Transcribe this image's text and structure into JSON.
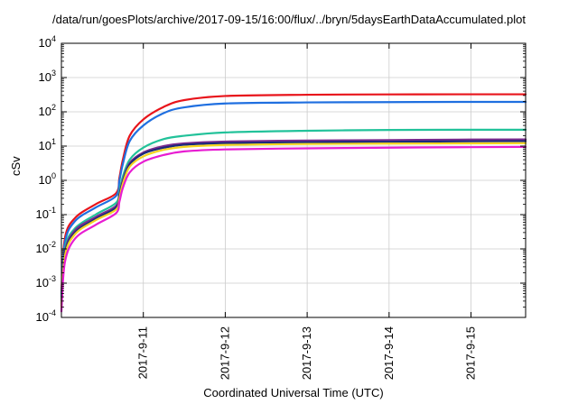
{
  "chart_data": {
    "type": "line",
    "title": "/data/run/goesPlots/archive/2017-09-15/16:00/flux/../bryn/5daysEarthDataAccumulated.plot",
    "xlabel": "Coordinated Universal Time (UTC)",
    "ylabel": "cSv",
    "yscale": "log",
    "ylim": [
      0.0001,
      10000
    ],
    "y_ticks": [
      {
        "base": "10",
        "exp": "-4",
        "value": 0.0001
      },
      {
        "base": "10",
        "exp": "-3",
        "value": 0.001
      },
      {
        "base": "10",
        "exp": "-2",
        "value": 0.01
      },
      {
        "base": "10",
        "exp": "-1",
        "value": 0.1
      },
      {
        "base": "10",
        "exp": "0",
        "value": 1
      },
      {
        "base": "10",
        "exp": "1",
        "value": 10
      },
      {
        "base": "10",
        "exp": "2",
        "value": 100
      },
      {
        "base": "10",
        "exp": "3",
        "value": 1000
      },
      {
        "base": "10",
        "exp": "4",
        "value": 10000
      }
    ],
    "xlim": [
      "2017-09-10 00:00",
      "2017-09-15 16:00"
    ],
    "x_ticks": [
      {
        "label": "2017-9-11",
        "value": "2017-09-11 00:00"
      },
      {
        "label": "2017-9-12",
        "value": "2017-09-12 00:00"
      },
      {
        "label": "2017-9-13",
        "value": "2017-09-13 00:00"
      },
      {
        "label": "2017-9-14",
        "value": "2017-09-14 00:00"
      },
      {
        "label": "2017-9-15",
        "value": "2017-09-15 00:00"
      }
    ],
    "grid": true,
    "legend": "none",
    "x": [
      "2017-09-10 00:00",
      "2017-09-10 01:00",
      "2017-09-10 04:00",
      "2017-09-10 10:00",
      "2017-09-10 16:00",
      "2017-09-10 17:00",
      "2017-09-10 18:00",
      "2017-09-10 20:00",
      "2017-09-11 00:00",
      "2017-09-11 06:00",
      "2017-09-11 12:00",
      "2017-09-12 00:00",
      "2017-09-13 00:00",
      "2017-09-14 00:00",
      "2017-09-15 00:00",
      "2017-09-15 16:00"
    ],
    "series": [
      {
        "color": "#e8141b",
        "values": [
          0.0005,
          0.02,
          0.08,
          0.2,
          0.42,
          1.2,
          4,
          20,
          60,
          140,
          220,
          290,
          315,
          322,
          325,
          325
        ]
      },
      {
        "color": "#1f6fe0",
        "values": [
          0.0004,
          0.015,
          0.065,
          0.16,
          0.35,
          1.0,
          3.0,
          14,
          40,
          92,
          135,
          175,
          188,
          192,
          195,
          195
        ]
      },
      {
        "color": "#22c29a",
        "values": [
          0.0003,
          0.01,
          0.04,
          0.1,
          0.22,
          0.5,
          1.3,
          4.0,
          9,
          16,
          20,
          25,
          28,
          29.5,
          30,
          30
        ]
      },
      {
        "color": "#7a2a8e",
        "values": [
          0.00025,
          0.008,
          0.035,
          0.085,
          0.18,
          0.4,
          1.0,
          3.2,
          6.5,
          10,
          12,
          13.6,
          14.5,
          15,
          15.5,
          15.7
        ]
      },
      {
        "color": "#1a2a7a",
        "values": [
          0.00022,
          0.007,
          0.03,
          0.075,
          0.16,
          0.35,
          0.9,
          2.9,
          6,
          9,
          11,
          12.2,
          13,
          13.4,
          13.8,
          14
        ]
      },
      {
        "color": "#f5d41f",
        "values": [
          0.0002,
          0.006,
          0.027,
          0.068,
          0.14,
          0.3,
          0.8,
          2.5,
          5,
          7.8,
          9.5,
          10.8,
          11.5,
          11.8,
          12,
          12.2
        ]
      },
      {
        "color": "#e81cd2",
        "values": [
          0.00015,
          0.004,
          0.02,
          0.05,
          0.11,
          0.24,
          0.6,
          1.7,
          3.5,
          5.5,
          7,
          8,
          8.6,
          9,
          9.3,
          9.5
        ]
      }
    ]
  }
}
